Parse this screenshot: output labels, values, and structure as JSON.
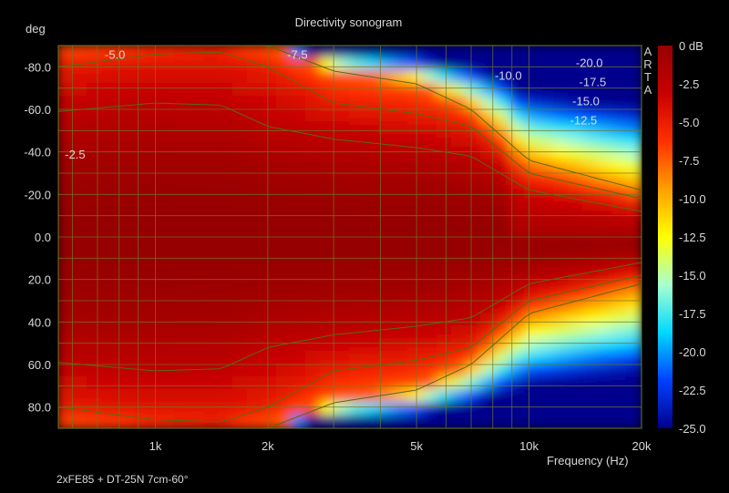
{
  "chart_data": {
    "type": "heatmap",
    "title": "Directivity sonogram",
    "ylabel": "deg",
    "xlabel": "Frequency (Hz)",
    "caption": "2xFE85 + DT-25N 7cm-60°",
    "brand": [
      "A",
      "R",
      "T",
      "A"
    ],
    "x_scale": "log",
    "xlim": [
      550,
      20000
    ],
    "ylim": [
      -90,
      90
    ],
    "y_reversed": true,
    "x_ticks": [
      {
        "value": 1000,
        "label": "1k"
      },
      {
        "value": 2000,
        "label": "2k"
      },
      {
        "value": 5000,
        "label": "5k"
      },
      {
        "value": 10000,
        "label": "10k"
      },
      {
        "value": 20000,
        "label": "20k"
      }
    ],
    "y_ticks": [
      {
        "value": -80,
        "label": "-80.0"
      },
      {
        "value": -60,
        "label": "-60.0"
      },
      {
        "value": -40,
        "label": "-40.0"
      },
      {
        "value": -20,
        "label": "-20.0"
      },
      {
        "value": 0,
        "label": "0.0"
      },
      {
        "value": 20,
        "label": "20.0"
      },
      {
        "value": 40,
        "label": "40.0"
      },
      {
        "value": 60,
        "label": "60.0"
      },
      {
        "value": 80,
        "label": "80.0"
      }
    ],
    "grid": true,
    "colorbar": {
      "unit_label": "0 dB",
      "range": [
        -25,
        0
      ],
      "ticks": [
        {
          "value": 0,
          "label": "0 dB"
        },
        {
          "value": -2.5,
          "label": "-2.5"
        },
        {
          "value": -5,
          "label": "-5.0"
        },
        {
          "value": -7.5,
          "label": "-7.5"
        },
        {
          "value": -10,
          "label": "-10.0"
        },
        {
          "value": -12.5,
          "label": "-12.5"
        },
        {
          "value": -15,
          "label": "-15.0"
        },
        {
          "value": -17.5,
          "label": "-17.5"
        },
        {
          "value": -20,
          "label": "-20.0"
        },
        {
          "value": -22.5,
          "label": "-22.5"
        },
        {
          "value": -25,
          "label": "-25.0"
        }
      ],
      "colors": [
        "#00008c",
        "#0040ff",
        "#00d8ff",
        "#a8ffd0",
        "#ffff00",
        "#ffa000",
        "#ff3000",
        "#c80000",
        "#960000"
      ]
    },
    "contour_labels": [
      {
        "text": "-5.0",
        "freq": 780,
        "deg": -86
      },
      {
        "text": "-7.5",
        "freq": 2400,
        "deg": -86
      },
      {
        "text": "-2.5",
        "freq": 610,
        "deg": -39
      },
      {
        "text": "-10.0",
        "freq": 8800,
        "deg": -76
      },
      {
        "text": "-20.0",
        "freq": 14500,
        "deg": -82
      },
      {
        "text": "-17.5",
        "freq": 14800,
        "deg": -73
      },
      {
        "text": "-15.0",
        "freq": 14200,
        "deg": -64
      },
      {
        "text": "-12.5",
        "freq": 14000,
        "deg": -55
      }
    ],
    "beamwidth_db": [
      {
        "freq": 550,
        "minus2_5": 59,
        "minus5": 80,
        "minus7_5": 90
      },
      {
        "freq": 1000,
        "minus2_5": 63,
        "minus5": 86,
        "minus7_5": 90
      },
      {
        "freq": 1500,
        "minus2_5": 62,
        "minus5": 87,
        "minus7_5": 90
      },
      {
        "freq": 2000,
        "minus2_5": 52,
        "minus5": 80,
        "minus7_5": 90
      },
      {
        "freq": 3000,
        "minus2_5": 46,
        "minus5": 63,
        "minus7_5": 78
      },
      {
        "freq": 5000,
        "minus2_5": 42,
        "minus5": 58,
        "minus7_5": 72
      },
      {
        "freq": 7000,
        "minus2_5": 38,
        "minus5": 52,
        "minus7_5": 60
      },
      {
        "freq": 10000,
        "minus2_5": 22,
        "minus5": 30,
        "minus7_5": 36
      },
      {
        "freq": 20000,
        "minus2_5": 12,
        "minus5": 18,
        "minus7_5": 22
      }
    ]
  }
}
